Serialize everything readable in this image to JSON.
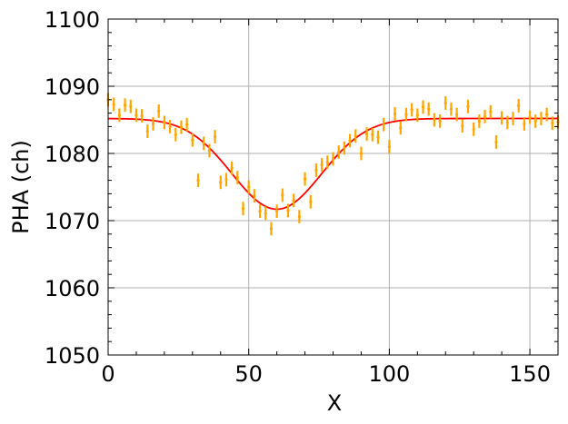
{
  "chart_data": {
    "type": "scatter",
    "xlabel": "X",
    "ylabel": "PHA (ch)",
    "xlim": [
      0,
      160
    ],
    "ylim": [
      1050,
      1100
    ],
    "x_ticks": [
      "0",
      "50",
      "100",
      "150"
    ],
    "y_ticks": [
      "1050",
      "1060",
      "1070",
      "1080",
      "1090",
      "1100"
    ],
    "grid": true,
    "colors": {
      "points": "#ffa500",
      "fit": "#ff0000",
      "grid": "#b0b0b0"
    },
    "series": [
      {
        "type": "errorbar",
        "x": [
          0,
          2,
          4,
          6,
          8,
          10,
          12,
          14,
          16,
          18,
          20,
          22,
          24,
          26,
          28,
          30,
          32,
          34,
          36,
          38,
          40,
          42,
          44,
          46,
          48,
          50,
          52,
          54,
          56,
          58,
          60,
          62,
          64,
          66,
          68,
          70,
          72,
          74,
          76,
          78,
          80,
          82,
          84,
          86,
          88,
          90,
          92,
          94,
          96,
          98,
          100,
          102,
          104,
          106,
          108,
          110,
          112,
          114,
          116,
          118,
          120,
          122,
          124,
          126,
          128,
          130,
          132,
          134,
          136,
          138,
          140,
          142,
          144,
          146,
          148,
          150,
          152,
          154,
          156,
          158,
          160
        ],
        "y": [
          1088.0,
          1087.3,
          1085.7,
          1087.2,
          1087.0,
          1085.7,
          1085.6,
          1083.3,
          1084.4,
          1086.3,
          1084.6,
          1084.0,
          1082.8,
          1083.9,
          1084.3,
          1082.0,
          1076.0,
          1081.5,
          1080.4,
          1082.5,
          1075.7,
          1076.1,
          1077.8,
          1076.4,
          1071.8,
          1075.0,
          1073.7,
          1071.4,
          1071.1,
          1068.8,
          1071.4,
          1073.8,
          1071.5,
          1073.0,
          1070.6,
          1076.2,
          1072.8,
          1077.5,
          1078.3,
          1078.7,
          1079.2,
          1080.2,
          1080.8,
          1081.9,
          1082.6,
          1080.0,
          1082.9,
          1082.8,
          1082.4,
          1084.3,
          1081.0,
          1085.9,
          1083.8,
          1085.8,
          1086.5,
          1085.7,
          1086.9,
          1086.6,
          1085.0,
          1084.8,
          1087.5,
          1086.6,
          1085.8,
          1084.1,
          1087.0,
          1083.6,
          1084.8,
          1085.5,
          1086.2,
          1081.7,
          1085.3,
          1084.6,
          1085.2,
          1087.1,
          1084.4,
          1085.4,
          1084.8,
          1085.2,
          1085.8,
          1084.5,
          1084.7
        ],
        "yerr": 1.0,
        "xerr": 0.4
      },
      {
        "type": "fit-line",
        "model": "gaussian-dip",
        "baseline": 1085.2,
        "depth": 13.5,
        "center": 60,
        "sigma": 16
      }
    ]
  }
}
